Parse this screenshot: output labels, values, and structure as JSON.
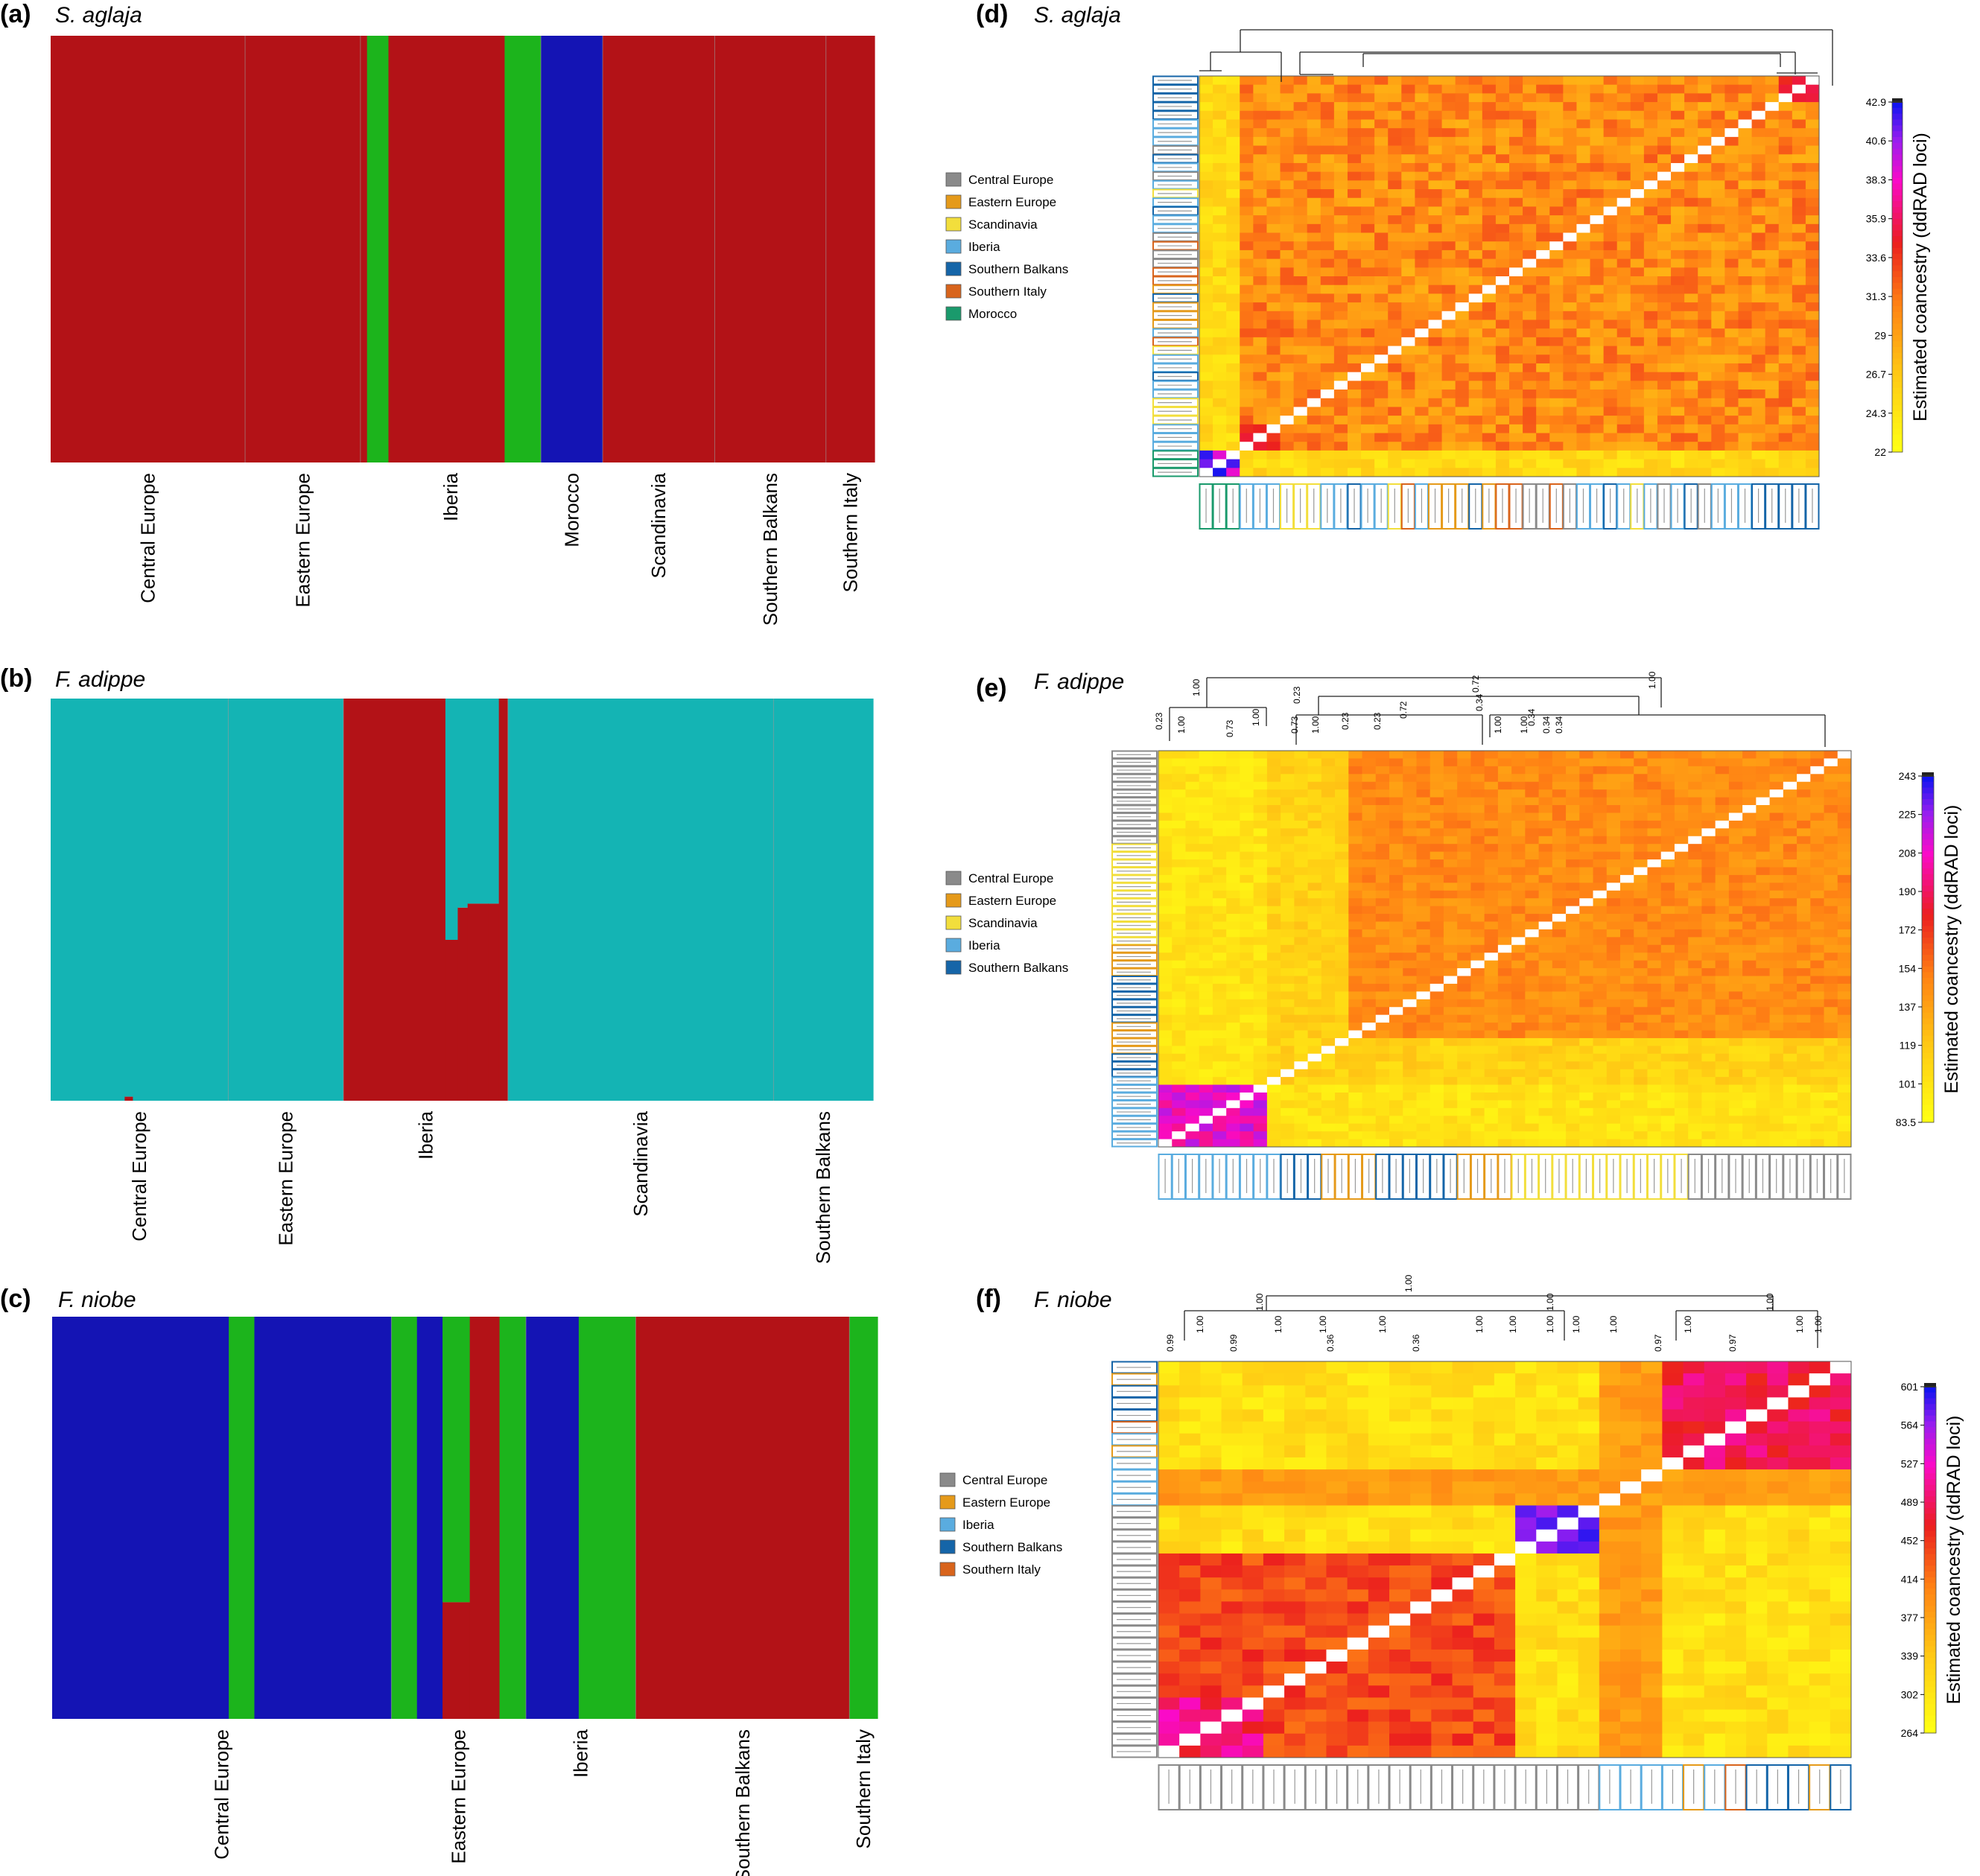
{
  "panels": {
    "a": {
      "label": "(a)",
      "species": "S. aglaja"
    },
    "b": {
      "label": "(b)",
      "species": "F. adippe"
    },
    "c": {
      "label": "(c)",
      "species": "F. niobe"
    },
    "d": {
      "label": "(d)",
      "species": "S. aglaja"
    },
    "e": {
      "label": "(e)",
      "species": "F. adippe"
    },
    "f": {
      "label": "(f)",
      "species": "F. niobe"
    }
  },
  "region_colors": {
    "Central Europe": "#8a8a8a",
    "Eastern Europe": "#e59a1a",
    "Scandinavia": "#f2de3c",
    "Iberia": "#5aacdf",
    "Southern Balkans": "#1565a8",
    "Southern Italy": "#d8641c",
    "Morocco": "#1a9a6c"
  },
  "cluster_colors": {
    "red": "#b31217",
    "green": "#1cb41c",
    "blue": "#1414b4",
    "teal": "#14b4b4"
  },
  "chart_data": [
    {
      "id": "a",
      "type": "bar",
      "subtype": "stacked admixture",
      "ylim": [
        0,
        1
      ],
      "ancestry_segments": [
        {
          "start": 0.0,
          "end": 0.384,
          "values": {
            "red": 1.0
          }
        },
        {
          "start": 0.384,
          "end": 0.41,
          "values": {
            "green": 1.0
          }
        },
        {
          "start": 0.41,
          "end": 0.551,
          "values": {
            "red": 1.0
          }
        },
        {
          "start": 0.551,
          "end": 0.595,
          "values": {
            "green": 1.0
          }
        },
        {
          "start": 0.595,
          "end": 0.67,
          "values": {
            "blue": 1.0
          }
        },
        {
          "start": 0.67,
          "end": 1.0,
          "values": {
            "red": 1.0
          }
        }
      ],
      "groups": [
        {
          "name": "Central Europe",
          "start": 0.0,
          "end": 0.236
        },
        {
          "name": "Eastern Europe",
          "start": 0.236,
          "end": 0.376
        },
        {
          "name": "Iberia",
          "start": 0.376,
          "end": 0.595
        },
        {
          "name": "Morocco",
          "start": 0.595,
          "end": 0.67
        },
        {
          "name": "Scandinavia",
          "start": 0.67,
          "end": 0.806
        },
        {
          "name": "Southern Balkans",
          "start": 0.806,
          "end": 0.941
        },
        {
          "name": "Southern Italy",
          "start": 0.941,
          "end": 1.0
        }
      ]
    },
    {
      "id": "b",
      "type": "bar",
      "subtype": "stacked admixture",
      "ylim": [
        0,
        1
      ],
      "ancestry_segments": [
        {
          "start": 0.0,
          "end": 0.09,
          "values": {
            "teal": 1.0
          }
        },
        {
          "start": 0.09,
          "end": 0.1,
          "values": {
            "teal": 0.99,
            "red": 0.01
          }
        },
        {
          "start": 0.1,
          "end": 0.356,
          "values": {
            "teal": 1.0
          }
        },
        {
          "start": 0.356,
          "end": 0.48,
          "values": {
            "red": 1.0
          }
        },
        {
          "start": 0.48,
          "end": 0.495,
          "values": {
            "teal": 0.6,
            "red": 0.4
          }
        },
        {
          "start": 0.495,
          "end": 0.507,
          "values": {
            "teal": 0.52,
            "red": 0.48
          }
        },
        {
          "start": 0.507,
          "end": 0.532,
          "values": {
            "teal": 0.51,
            "red": 0.49
          }
        },
        {
          "start": 0.532,
          "end": 0.545,
          "values": {
            "teal": 0.51,
            "red": 0.49
          }
        },
        {
          "start": 0.545,
          "end": 0.556,
          "values": {
            "red": 1.0
          }
        },
        {
          "start": 0.556,
          "end": 1.0,
          "values": {
            "teal": 1.0
          }
        }
      ],
      "groups": [
        {
          "name": "Central Europe",
          "start": 0.0,
          "end": 0.216
        },
        {
          "name": "Eastern Europe",
          "start": 0.216,
          "end": 0.356
        },
        {
          "name": "Iberia",
          "start": 0.356,
          "end": 0.556
        },
        {
          "name": "Scandinavia",
          "start": 0.556,
          "end": 0.879
        },
        {
          "name": "Southern Balkans",
          "start": 0.879,
          "end": 1.0
        }
      ]
    },
    {
      "id": "c",
      "type": "bar",
      "subtype": "stacked admixture",
      "ylim": [
        0,
        1
      ],
      "ancestry_segments": [
        {
          "start": 0.0,
          "end": 0.214,
          "values": {
            "blue": 1.0
          }
        },
        {
          "start": 0.214,
          "end": 0.245,
          "values": {
            "green": 1.0
          }
        },
        {
          "start": 0.245,
          "end": 0.411,
          "values": {
            "blue": 1.0
          }
        },
        {
          "start": 0.411,
          "end": 0.442,
          "values": {
            "green": 1.0
          }
        },
        {
          "start": 0.442,
          "end": 0.473,
          "values": {
            "blue": 1.0
          }
        },
        {
          "start": 0.473,
          "end": 0.506,
          "values": {
            "green": 0.71,
            "red": 0.29
          }
        },
        {
          "start": 0.506,
          "end": 0.542,
          "values": {
            "red": 1.0
          }
        },
        {
          "start": 0.542,
          "end": 0.574,
          "values": {
            "green": 1.0
          }
        },
        {
          "start": 0.574,
          "end": 0.638,
          "values": {
            "blue": 1.0
          }
        },
        {
          "start": 0.638,
          "end": 0.707,
          "values": {
            "green": 1.0
          }
        },
        {
          "start": 0.707,
          "end": 0.966,
          "values": {
            "red": 1.0
          }
        },
        {
          "start": 0.966,
          "end": 1.0,
          "values": {
            "green": 1.0
          }
        }
      ],
      "groups": [
        {
          "name": "Central Europe",
          "start": 0.0,
          "end": 0.411
        },
        {
          "name": "Eastern Europe",
          "start": 0.411,
          "end": 0.574
        },
        {
          "name": "Iberia",
          "start": 0.574,
          "end": 0.707
        },
        {
          "name": "Southern Balkans",
          "start": 0.707,
          "end": 0.966
        },
        {
          "name": "Southern Italy",
          "start": 0.966,
          "end": 1.0
        }
      ]
    },
    {
      "id": "d",
      "type": "heatmap",
      "n_samples": 46,
      "colorbar": {
        "title": "Estimated coancestry (ddRAD loci)",
        "ticks": [
          "42.9",
          "40.6",
          "38.3",
          "35.9",
          "33.6",
          "31.3",
          "29",
          "26.7",
          "24.3",
          "22"
        ]
      },
      "legend": [
        "Central Europe",
        "Eastern Europe",
        "Scandinavia",
        "Iberia",
        "Southern Balkans",
        "Southern Italy",
        "Morocco"
      ]
    },
    {
      "id": "e",
      "type": "heatmap",
      "n_samples": 51,
      "colorbar": {
        "title": "Estimated coancestry (ddRAD loci)",
        "ticks": [
          "243",
          "225",
          "208",
          "190",
          "172",
          "154",
          "137",
          "119",
          "101",
          "83.5"
        ]
      },
      "legend": [
        "Central Europe",
        "Eastern Europe",
        "Scandinavia",
        "Iberia",
        "Southern Balkans"
      ],
      "node_support": [
        "1.00",
        "0.72",
        "1.00",
        "0.23",
        "0.23",
        "0.34",
        "0.72",
        "1.00",
        "0.73",
        "1.00",
        "0.73",
        "1.00",
        "0.23",
        "0.23",
        "1.00",
        "1.00",
        "0.34",
        "0.34",
        "0.34"
      ]
    },
    {
      "id": "f",
      "type": "heatmap",
      "n_samples": 33,
      "colorbar": {
        "title": "Estimated coancestry (ddRAD loci)",
        "ticks": [
          "601",
          "564",
          "527",
          "489",
          "452",
          "414",
          "377",
          "339",
          "302",
          "264"
        ]
      },
      "legend": [
        "Central Europe",
        "Eastern Europe",
        "Iberia",
        "Southern Balkans",
        "Southern Italy"
      ],
      "node_support": [
        "1.00",
        "1.00",
        "1.00",
        "1.00",
        "1.00",
        "1.00",
        "1.00",
        "1.00",
        "1.00",
        "1.00",
        "1.00",
        "1.00",
        "1.00",
        "1.00",
        "1.00",
        "1.00",
        "0.99",
        "0.99",
        "0.36",
        "0.36",
        "0.97",
        "0.97"
      ]
    }
  ]
}
